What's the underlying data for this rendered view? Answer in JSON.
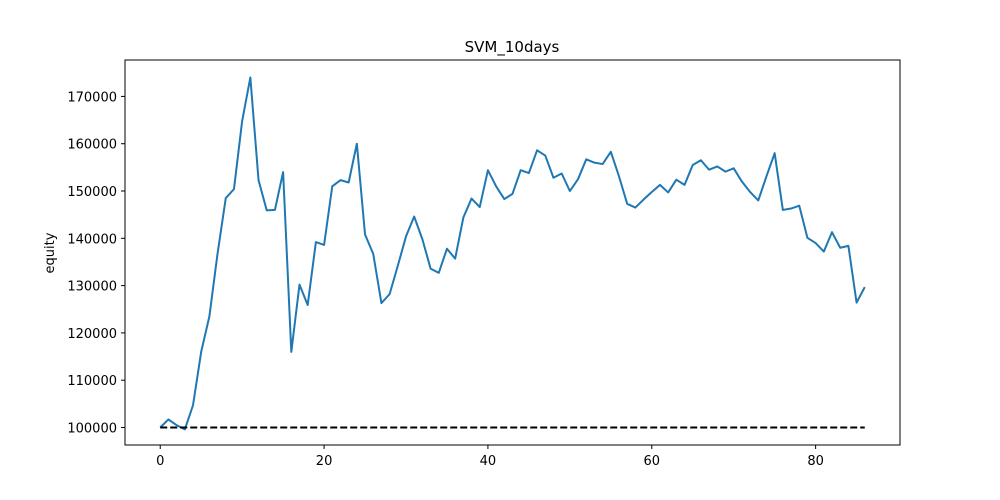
{
  "chart_data": {
    "type": "line",
    "title": "SVM_10days",
    "xlabel": "",
    "ylabel": "equity",
    "xlim": [
      -4.3,
      90.3
    ],
    "ylim": [
      96300,
      177700
    ],
    "xticks": [
      0,
      20,
      40,
      60,
      80
    ],
    "yticks": [
      100000,
      110000,
      120000,
      130000,
      140000,
      150000,
      160000,
      170000
    ],
    "grid": false,
    "legend": "none",
    "series": [
      {
        "color": "#1f77b4",
        "style": "solid",
        "x": [
          0,
          1,
          2,
          3,
          4,
          5,
          6,
          7,
          8,
          9,
          10,
          11,
          12,
          13,
          14,
          15,
          16,
          17,
          18,
          19,
          20,
          21,
          22,
          23,
          24,
          25,
          26,
          27,
          28,
          29,
          30,
          31,
          32,
          33,
          34,
          35,
          36,
          37,
          38,
          39,
          40,
          41,
          42,
          43,
          44,
          45,
          46,
          47,
          48,
          49,
          50,
          51,
          52,
          53,
          54,
          55,
          56,
          57,
          58,
          59,
          60,
          61,
          62,
          63,
          64,
          65,
          66,
          67,
          68,
          69,
          70,
          71,
          72,
          73,
          74,
          75,
          76,
          77,
          78,
          79,
          80,
          81,
          82,
          83,
          84,
          85,
          86
        ],
        "values": [
          100000,
          101700,
          100500,
          99600,
          104700,
          116000,
          123500,
          136800,
          148500,
          150400,
          164800,
          174000,
          152300,
          145900,
          146000,
          154000,
          116000,
          130200,
          125900,
          139200,
          138600,
          151000,
          152300,
          151800,
          160000,
          140800,
          136700,
          126300,
          128200,
          134200,
          140400,
          144600,
          139800,
          133600,
          132700,
          137800,
          135700,
          144400,
          148400,
          146600,
          154400,
          151000,
          148300,
          149400,
          154400,
          153800,
          158600,
          157500,
          152800,
          153700,
          150000,
          152500,
          156700,
          156000,
          155700,
          158300,
          153100,
          147300,
          146500,
          148200,
          149800,
          151300,
          149700,
          152400,
          151300,
          155500,
          156500,
          154500,
          155200,
          154100,
          154800,
          152000,
          149800,
          148000,
          153100,
          158000,
          146000,
          146300,
          146900,
          140100,
          139000,
          137200,
          141300,
          138000,
          138400,
          126400,
          129700
        ]
      },
      {
        "color": "#000000",
        "style": "dashed",
        "x": [
          0,
          86
        ],
        "values": [
          100000,
          100000
        ]
      }
    ]
  }
}
